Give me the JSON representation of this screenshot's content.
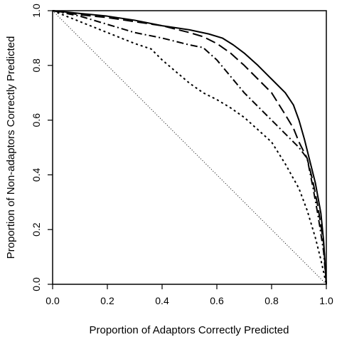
{
  "chart_data": {
    "type": "line",
    "title": "",
    "xlabel": "Proportion of Adaptors Correctly Predicted",
    "ylabel": "Proportion of Non-adaptors Correctly Predicted",
    "xlim": [
      0,
      1
    ],
    "ylim": [
      0,
      1
    ],
    "x_ticks": [
      "0.0",
      "0.2",
      "0.4",
      "0.6",
      "0.8",
      "1.0"
    ],
    "y_ticks": [
      "0.0",
      "0.2",
      "0.4",
      "0.6",
      "0.8",
      "1.0"
    ],
    "grid": false,
    "legend": "none",
    "series": [
      {
        "style": "solid",
        "color": "#000000",
        "points": [
          [
            0,
            1
          ],
          [
            0.1,
            0.99
          ],
          [
            0.2,
            0.98
          ],
          [
            0.3,
            0.965
          ],
          [
            0.4,
            0.945
          ],
          [
            0.5,
            0.93
          ],
          [
            0.57,
            0.915
          ],
          [
            0.62,
            0.9
          ],
          [
            0.66,
            0.875
          ],
          [
            0.7,
            0.845
          ],
          [
            0.75,
            0.8
          ],
          [
            0.8,
            0.75
          ],
          [
            0.85,
            0.7
          ],
          [
            0.88,
            0.655
          ],
          [
            0.9,
            0.6
          ],
          [
            0.92,
            0.53
          ],
          [
            0.94,
            0.45
          ],
          [
            0.96,
            0.37
          ],
          [
            0.98,
            0.26
          ],
          [
            0.99,
            0.16
          ],
          [
            1.0,
            0.0
          ]
        ]
      },
      {
        "style": "long-dash",
        "color": "#000000",
        "points": [
          [
            0,
            1
          ],
          [
            0.1,
            0.985
          ],
          [
            0.2,
            0.975
          ],
          [
            0.3,
            0.96
          ],
          [
            0.4,
            0.945
          ],
          [
            0.5,
            0.92
          ],
          [
            0.55,
            0.905
          ],
          [
            0.6,
            0.88
          ],
          [
            0.65,
            0.845
          ],
          [
            0.7,
            0.8
          ],
          [
            0.75,
            0.75
          ],
          [
            0.8,
            0.7
          ],
          [
            0.85,
            0.62
          ],
          [
            0.88,
            0.57
          ],
          [
            0.9,
            0.52
          ],
          [
            0.93,
            0.46
          ],
          [
            0.95,
            0.38
          ],
          [
            0.97,
            0.28
          ],
          [
            0.99,
            0.15
          ],
          [
            1.0,
            0.0
          ]
        ]
      },
      {
        "style": "dash-dot",
        "color": "#000000",
        "points": [
          [
            0,
            1
          ],
          [
            0.1,
            0.98
          ],
          [
            0.2,
            0.95
          ],
          [
            0.3,
            0.92
          ],
          [
            0.4,
            0.9
          ],
          [
            0.5,
            0.875
          ],
          [
            0.55,
            0.865
          ],
          [
            0.6,
            0.82
          ],
          [
            0.65,
            0.76
          ],
          [
            0.7,
            0.7
          ],
          [
            0.75,
            0.65
          ],
          [
            0.8,
            0.6
          ],
          [
            0.85,
            0.55
          ],
          [
            0.9,
            0.5
          ],
          [
            0.93,
            0.46
          ],
          [
            0.95,
            0.36
          ],
          [
            0.97,
            0.25
          ],
          [
            0.99,
            0.12
          ],
          [
            1.0,
            0.0
          ]
        ]
      },
      {
        "style": "dotted",
        "color": "#000000",
        "points": [
          [
            0,
            1
          ],
          [
            0.1,
            0.96
          ],
          [
            0.2,
            0.92
          ],
          [
            0.3,
            0.88
          ],
          [
            0.36,
            0.86
          ],
          [
            0.4,
            0.82
          ],
          [
            0.5,
            0.735
          ],
          [
            0.55,
            0.7
          ],
          [
            0.6,
            0.675
          ],
          [
            0.65,
            0.645
          ],
          [
            0.7,
            0.61
          ],
          [
            0.75,
            0.565
          ],
          [
            0.8,
            0.52
          ],
          [
            0.85,
            0.44
          ],
          [
            0.9,
            0.35
          ],
          [
            0.93,
            0.27
          ],
          [
            0.96,
            0.17
          ],
          [
            0.98,
            0.09
          ],
          [
            1.0,
            0.0
          ]
        ]
      },
      {
        "style": "reference-dotted",
        "color": "#000000",
        "points": [
          [
            0,
            1
          ],
          [
            1,
            0
          ]
        ]
      }
    ]
  }
}
